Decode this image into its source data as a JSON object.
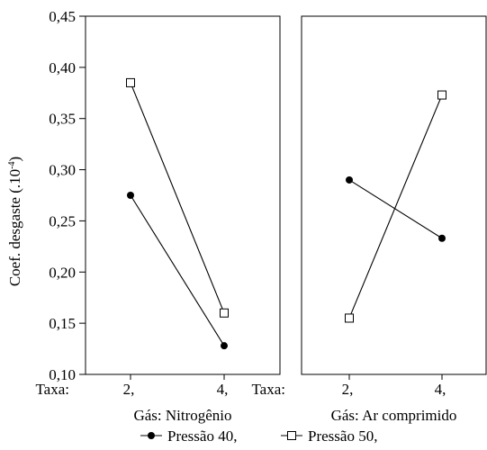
{
  "chart_data": {
    "type": "line",
    "ylabel": "Coef. desgaste (.10",
    "ylabel_sup": "-4",
    "ylabel_close": ")",
    "ylim": [
      0.1,
      0.45
    ],
    "yticks": [
      0.1,
      0.15,
      0.2,
      0.25,
      0.3,
      0.35,
      0.4,
      0.45
    ],
    "ytick_labels": [
      "0,10",
      "0,15",
      "0,20",
      "0,25",
      "0,30",
      "0,35",
      "0,40",
      "0,45"
    ],
    "x_prefix": "Taxa:",
    "categories": [
      "2,",
      "4,"
    ],
    "legend_position": "bottom-center",
    "panels": [
      {
        "title": "Gás: Nitrogênio",
        "series": [
          {
            "name": "Pressão 40,",
            "marker": "filled-circle",
            "values": [
              0.275,
              0.128
            ]
          },
          {
            "name": "Pressão 50,",
            "marker": "open-square",
            "values": [
              0.385,
              0.16
            ]
          }
        ]
      },
      {
        "title": "Gás: Ar comprimido",
        "series": [
          {
            "name": "Pressão 40,",
            "marker": "filled-circle",
            "values": [
              0.29,
              0.233
            ]
          },
          {
            "name": "Pressão 50,",
            "marker": "open-square",
            "values": [
              0.155,
              0.373
            ]
          }
        ]
      }
    ]
  }
}
